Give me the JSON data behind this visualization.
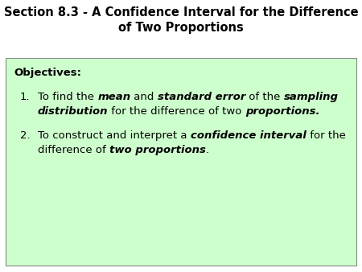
{
  "title_line1": "Section 8.3 - A Confidence Interval for the Difference",
  "title_line2": "of Two Proportions",
  "title_fontsize": 10.5,
  "background_color": "#ffffff",
  "box_fill_color": "#ccffcc",
  "box_edge_color": "#888888",
  "objectives_label": "Objectives:",
  "text_color": "#000000",
  "body_fontsize": 9.5,
  "fig_width": 4.5,
  "fig_height": 3.38,
  "dpi": 100
}
